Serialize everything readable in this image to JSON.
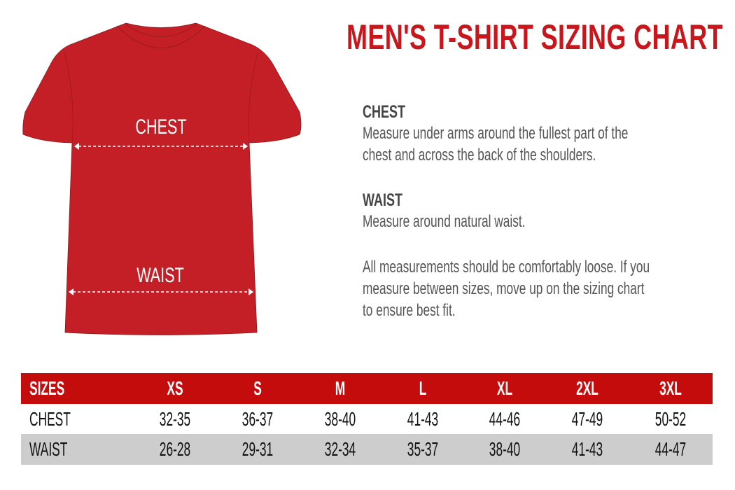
{
  "title": "MEN'S T-SHIRT SIZING CHART",
  "colors": {
    "accent": "#c8161d",
    "shirt": "#c41f26",
    "header_row": "#c40c0c",
    "alt_row": "#cdcdcd"
  },
  "shirt": {
    "chest_label": "CHEST",
    "waist_label": "WAIST"
  },
  "info": {
    "chest_heading": "CHEST",
    "chest_lines": [
      "Measure under arms around the fullest part of the",
      "chest and across the back of the shoulders."
    ],
    "waist_heading": "WAIST",
    "waist_text": "Measure around natural waist.",
    "note_lines": [
      "All measurements should be comfortably loose. If you",
      "measure between sizes, move up on the sizing chart",
      "to ensure best fit."
    ]
  },
  "table": {
    "header": [
      "SIZES",
      "XS",
      "S",
      "M",
      "L",
      "XL",
      "2XL",
      "3XL"
    ],
    "rows": [
      [
        "CHEST",
        "32-35",
        "36-37",
        "38-40",
        "41-43",
        "44-46",
        "47-49",
        "50-52"
      ],
      [
        "WAIST",
        "26-28",
        "29-31",
        "32-34",
        "35-37",
        "38-40",
        "41-43",
        "44-47"
      ]
    ]
  }
}
